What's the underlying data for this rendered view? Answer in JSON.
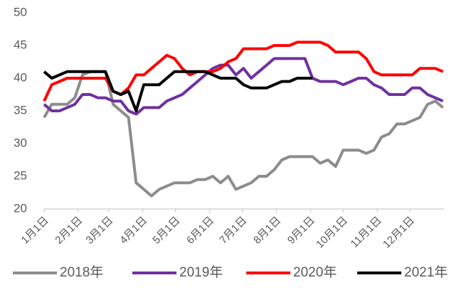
{
  "chart_data": {
    "type": "line",
    "x": [
      0,
      7,
      14,
      21,
      28,
      35,
      42,
      49,
      56,
      63,
      70,
      77,
      84,
      91,
      98,
      105,
      112,
      119,
      126,
      133,
      140,
      147,
      154,
      161,
      168,
      175,
      182,
      189,
      196,
      203,
      210,
      217,
      224,
      231,
      238,
      245,
      252,
      259,
      266,
      273,
      280,
      287,
      294,
      301,
      308,
      315,
      322,
      329,
      336,
      343,
      350,
      357,
      364
    ],
    "xlim": [
      0,
      365
    ],
    "xticks": [
      {
        "value": 0,
        "label": "1月1日"
      },
      {
        "value": 31,
        "label": "2月1日"
      },
      {
        "value": 59,
        "label": "3月1日"
      },
      {
        "value": 90,
        "label": "4月1日"
      },
      {
        "value": 120,
        "label": "5月1日"
      },
      {
        "value": 151,
        "label": "6月1日"
      },
      {
        "value": 181,
        "label": "7月1日"
      },
      {
        "value": 212,
        "label": "8月1日"
      },
      {
        "value": 243,
        "label": "9月1日"
      },
      {
        "value": 273,
        "label": "10月1日"
      },
      {
        "value": 304,
        "label": "11月1日"
      },
      {
        "value": 334,
        "label": "12月1日"
      }
    ],
    "ylim": [
      20,
      50
    ],
    "yticks": [
      20,
      25,
      30,
      35,
      40,
      45,
      50
    ],
    "grid": false,
    "legend": "bottom",
    "series": [
      {
        "name": "2018年",
        "color": "#8c8c8c",
        "values": [
          34,
          36,
          36,
          36,
          37,
          40.5,
          41,
          41,
          41,
          36,
          35,
          34,
          24,
          23,
          22,
          23,
          23.5,
          24,
          24,
          24,
          24.5,
          24.5,
          25,
          24,
          25,
          23,
          23.5,
          24,
          25,
          25,
          26,
          27.5,
          28,
          28,
          28,
          28,
          27,
          27.5,
          26.5,
          29,
          29,
          29,
          28.5,
          29,
          31,
          31.5,
          33,
          33,
          33.5,
          34,
          36,
          36.5,
          35.5
        ]
      },
      {
        "name": "2019年",
        "color": "#7030a0",
        "values": [
          36,
          35,
          35,
          35.5,
          36,
          37.5,
          37.5,
          37,
          37,
          36.5,
          36.5,
          35,
          34.5,
          35.5,
          35.5,
          35.5,
          36.5,
          37,
          37.5,
          38.5,
          39.5,
          40.5,
          41.5,
          42,
          42,
          40.5,
          41.5,
          40,
          41,
          42,
          43,
          43,
          43,
          43,
          43,
          40,
          39.5,
          39.5,
          39.5,
          39,
          39.5,
          40,
          40,
          39,
          38.5,
          37.5,
          37.5,
          37.5,
          38.5,
          38.5,
          37.5,
          37,
          36.5
        ]
      },
      {
        "name": "2020年",
        "color": "#ff0000",
        "values": [
          36.5,
          39,
          39.5,
          40,
          40,
          40,
          40,
          40,
          40,
          38,
          37.5,
          38.5,
          40.5,
          40.5,
          41.5,
          42.5,
          43.5,
          43,
          41.5,
          40.5,
          41,
          41,
          41,
          41.5,
          42.5,
          43,
          44.5,
          44.5,
          44.5,
          44.5,
          45,
          45,
          45,
          45.5,
          45.5,
          45.5,
          45.5,
          45,
          44,
          44,
          44,
          44,
          43,
          41,
          40.5,
          40.5,
          40.5,
          40.5,
          40.5,
          41.5,
          41.5,
          41.5,
          41
        ]
      },
      {
        "name": "2021年",
        "color": "#000000",
        "values": [
          41,
          40,
          40.5,
          41,
          41,
          41,
          41,
          41,
          41,
          38,
          37.5,
          38,
          35,
          39,
          39,
          39,
          40,
          41,
          41,
          41,
          41,
          41,
          40.5,
          40,
          40,
          40,
          39,
          38.5,
          38.5,
          38.5,
          39,
          39.5,
          39.5,
          40,
          40,
          40,
          null,
          null,
          null,
          null,
          null,
          null,
          null,
          null,
          null,
          null,
          null,
          null,
          null,
          null,
          null,
          null,
          null
        ]
      }
    ]
  }
}
